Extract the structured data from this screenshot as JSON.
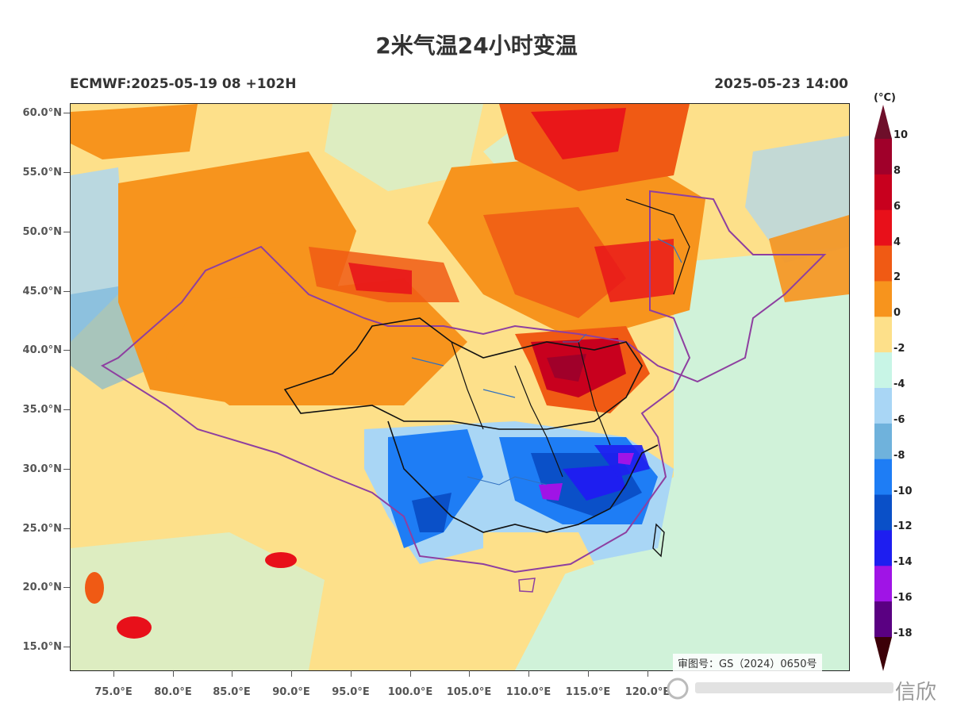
{
  "title": "2米气温24小时变温",
  "subtitle_left": "ECMWF:2025-05-19 08 +102H",
  "subtitle_right": "2025-05-23 14:00",
  "colorbar": {
    "unit": "(°C)",
    "labels": [
      "10",
      "8",
      "6",
      "4",
      "2",
      "0",
      "-2",
      "-4",
      "-6",
      "-8",
      "-10",
      "-12",
      "-14",
      "-16",
      "-18"
    ],
    "colors": [
      "#a0002a",
      "#c8001e",
      "#e8101a",
      "#f05a14",
      "#f7941d",
      "#fde08a",
      "#c8f5e6",
      "#a9d6f5",
      "#6fb2dc",
      "#1e7df5",
      "#0a50c8",
      "#1e1ef0",
      "#a014e6",
      "#5a0082",
      "#7a0010"
    ],
    "top_color": "#6e0f2a",
    "bottom_color": "#3c0008"
  },
  "lat_labels": [
    "60.0°N",
    "55.0°N",
    "50.0°N",
    "45.0°N",
    "40.0°N",
    "35.0°N",
    "30.0°N",
    "25.0°N",
    "20.0°N",
    "15.0°N"
  ],
  "lon_labels": [
    "75.0°E",
    "80.0°E",
    "85.0°E",
    "90.0°E",
    "95.0°E",
    "100.0°E",
    "105.0°E",
    "110.0°E",
    "115.0°E",
    "120.0°E"
  ],
  "review_number": "审图号：GS（2024）0650号",
  "watermark_text": "信欣"
}
